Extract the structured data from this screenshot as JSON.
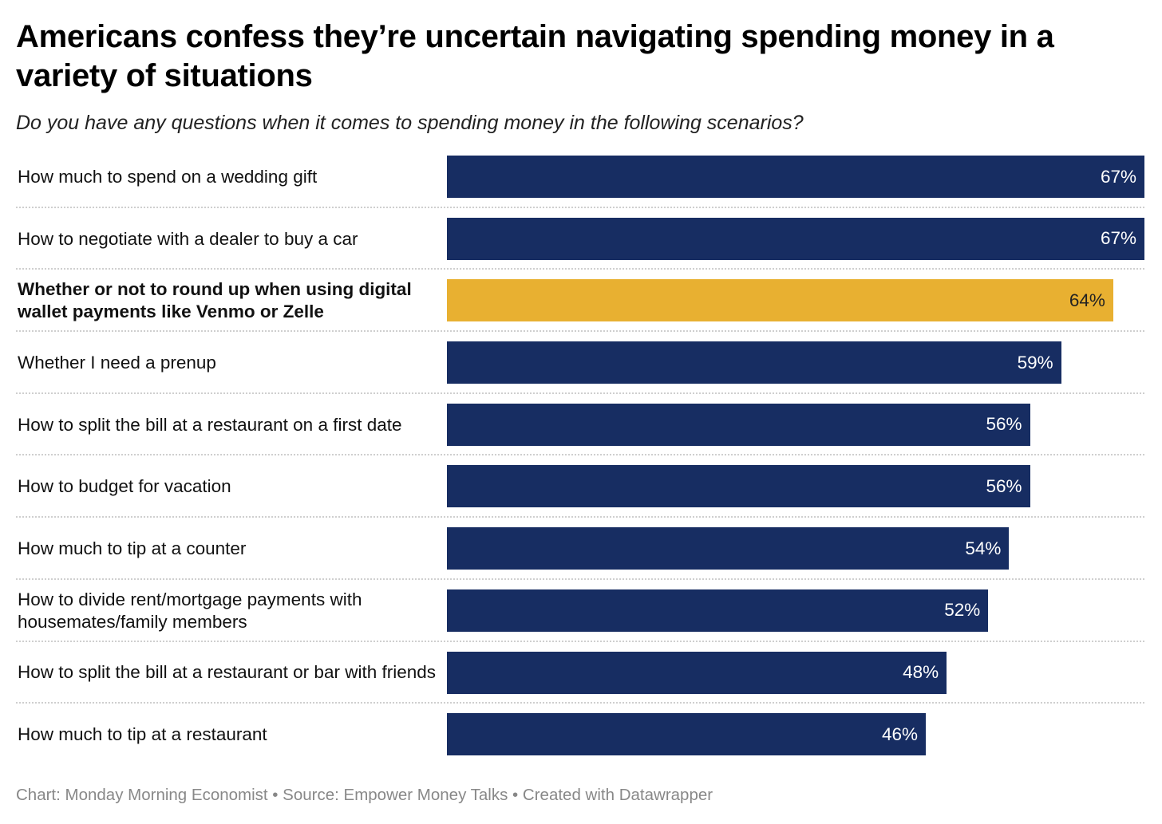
{
  "title": "Americans confess they’re uncertain navigating spending money in a variety of situations",
  "subtitle": "Do you have any questions when it comes to spending money in the following scenarios?",
  "footer": "Chart: Monday Morning Economist • Source: Empower Money Talks • Created with Datawrapper",
  "colors": {
    "default": "#172d62",
    "highlight": "#e8b031"
  },
  "chart_data": {
    "type": "bar",
    "orientation": "horizontal",
    "title": "Americans confess they’re uncertain navigating spending money in a variety of situations",
    "subtitle": "Do you have any questions when it comes to spending money in the following scenarios?",
    "xlim": [
      0,
      67
    ],
    "unit": "%",
    "highlighted": "Whether or not to round up when using digital wallet payments like Venmo or Zelle",
    "categories": [
      "How much to spend on a wedding gift",
      "How to negotiate with a dealer to buy a car",
      "Whether or not to round up when using digital wallet payments like Venmo or Zelle",
      "Whether I need a prenup",
      "How to split the bill at a restaurant on a first date",
      "How to budget for vacation",
      "How much to tip at a counter",
      "How to divide rent/mortgage payments with housemates/family members",
      "How to split the bill at a restaurant or bar with friends",
      "How much to tip at a restaurant"
    ],
    "values": [
      67,
      67,
      64,
      59,
      56,
      56,
      54,
      52,
      48,
      46
    ],
    "labels": [
      "67%",
      "67%",
      "64%",
      "59%",
      "56%",
      "56%",
      "54%",
      "52%",
      "48%",
      "46%"
    ]
  }
}
